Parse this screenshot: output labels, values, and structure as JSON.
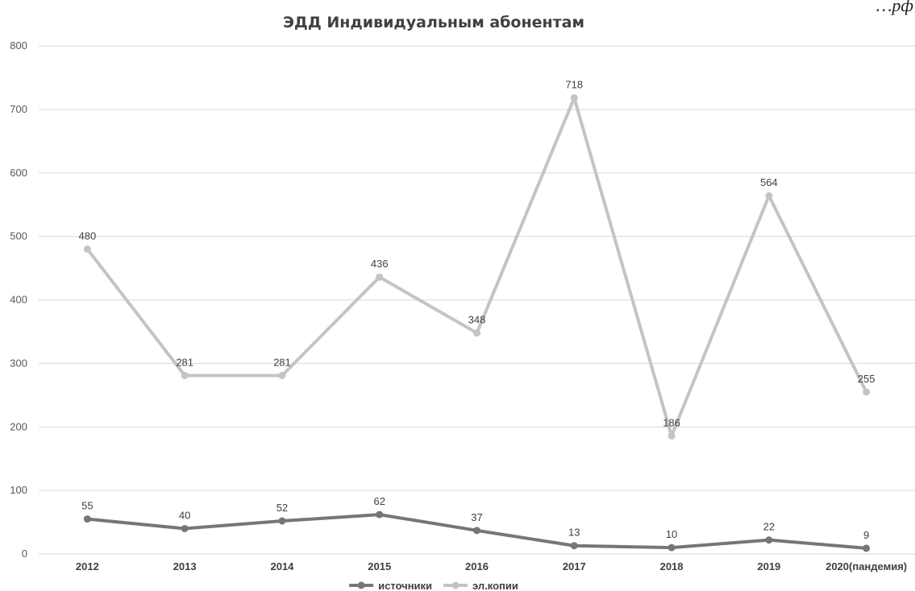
{
  "corner_text": "…рф",
  "chart_data": {
    "type": "line",
    "title": "ЭДД Индивидуальным абонентам",
    "xlabel": "",
    "ylabel": "",
    "categories": [
      "2012",
      "2013",
      "2014",
      "2015",
      "2016",
      "2017",
      "2018",
      "2019",
      "2020(пандемия)"
    ],
    "ylim": [
      0,
      800
    ],
    "yticks": [
      0,
      100,
      200,
      300,
      400,
      500,
      600,
      700,
      800
    ],
    "grid": true,
    "legend_position": "bottom",
    "data_labels": true,
    "series": [
      {
        "name": "источники",
        "color": "#767676",
        "values": [
          55,
          40,
          52,
          62,
          37,
          13,
          10,
          22,
          9
        ]
      },
      {
        "name": "эл.копии",
        "color": "#c4c4c4",
        "values": [
          480,
          281,
          281,
          436,
          348,
          718,
          186,
          564,
          255
        ]
      }
    ]
  }
}
